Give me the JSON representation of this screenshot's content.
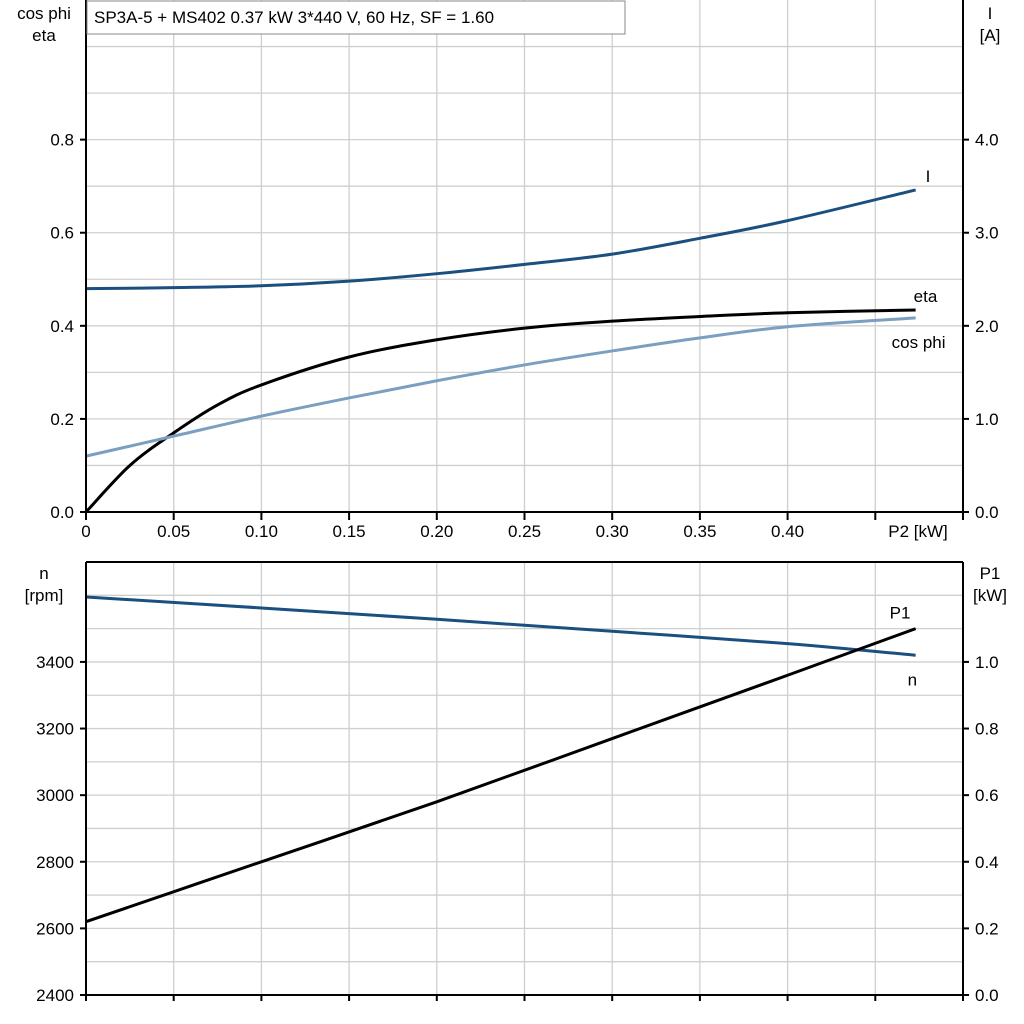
{
  "title": "SP3A-5 + MS402   0.37 kW   3*440 V, 60 Hz, SF = 1.60",
  "colors": {
    "I": "#1a4f80",
    "eta": "#000000",
    "cos_phi": "#7a9fc0",
    "n": "#1a4f80",
    "P1": "#000000",
    "grid": "#cfcfcf"
  },
  "chart_data": [
    {
      "type": "line",
      "xlabel": "P2 [kW]",
      "xlim": [
        0,
        0.5
      ],
      "x_ticks": [
        "0",
        "0.05",
        "0.10",
        "0.15",
        "0.20",
        "0.25",
        "0.30",
        "0.35",
        "0.40"
      ],
      "ylabel_left": [
        "cos phi",
        "eta"
      ],
      "ylim_left": [
        0,
        1.1
      ],
      "y_ticks_left": [
        "0.0",
        "0.2",
        "0.4",
        "0.6",
        "0.8"
      ],
      "ylabel_right": [
        "I",
        "[A]"
      ],
      "ylim_right": [
        0,
        5.5
      ],
      "y_ticks_right": [
        "0.0",
        "1.0",
        "2.0",
        "3.0",
        "4.0"
      ],
      "grid": true,
      "series": [
        {
          "name": "I",
          "axis": "right",
          "x": [
            0,
            0.05,
            0.1,
            0.15,
            0.2,
            0.25,
            0.3,
            0.35,
            0.4,
            0.473
          ],
          "y": [
            2.4,
            2.41,
            2.43,
            2.48,
            2.56,
            2.66,
            2.77,
            2.94,
            3.13,
            3.46
          ]
        },
        {
          "name": "eta",
          "axis": "left",
          "x": [
            0,
            0.025,
            0.05,
            0.075,
            0.1,
            0.15,
            0.2,
            0.25,
            0.3,
            0.35,
            0.4,
            0.473
          ],
          "y": [
            0,
            0.1,
            0.17,
            0.23,
            0.273,
            0.333,
            0.37,
            0.395,
            0.41,
            0.42,
            0.428,
            0.434
          ]
        },
        {
          "name": "cos phi",
          "axis": "left",
          "x": [
            0,
            0.05,
            0.1,
            0.15,
            0.2,
            0.25,
            0.3,
            0.35,
            0.4,
            0.473
          ],
          "y": [
            0.12,
            0.163,
            0.206,
            0.245,
            0.282,
            0.316,
            0.346,
            0.374,
            0.398,
            0.417
          ]
        }
      ]
    },
    {
      "type": "line",
      "xlim": [
        0,
        0.5
      ],
      "ylabel_left": [
        "n",
        "[rpm]"
      ],
      "ylim_left": [
        2400,
        3700
      ],
      "y_ticks_left": [
        "2400",
        "2600",
        "2800",
        "3000",
        "3200",
        "3400"
      ],
      "ylabel_right": [
        "P1",
        "[kW]"
      ],
      "ylim_right": [
        0,
        1.3
      ],
      "y_ticks_right": [
        "0.0",
        "0.2",
        "0.4",
        "0.6",
        "0.8",
        "1.0"
      ],
      "grid": true,
      "series": [
        {
          "name": "n",
          "axis": "left",
          "x": [
            0,
            0.1,
            0.2,
            0.3,
            0.4,
            0.473
          ],
          "y": [
            3595,
            3562,
            3528,
            3492,
            3455,
            3420
          ]
        },
        {
          "name": "P1",
          "axis": "right",
          "x": [
            0,
            0.1,
            0.2,
            0.3,
            0.4,
            0.473
          ],
          "y": [
            0.22,
            0.4,
            0.58,
            0.77,
            0.96,
            1.1
          ]
        }
      ]
    }
  ]
}
